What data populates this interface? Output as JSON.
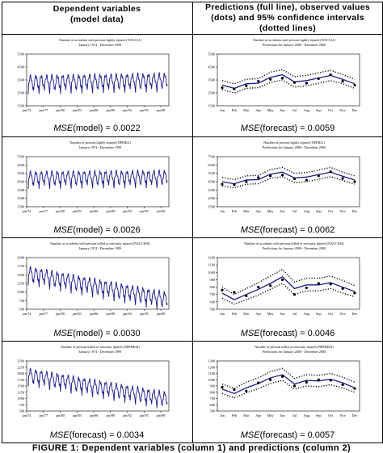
{
  "headers": {
    "left": [
      "Dependent variables",
      "(model data)"
    ],
    "right": [
      "Predictions (full line), observed values",
      "(dots) and 95% confidence intervals",
      "(dotted lines)"
    ]
  },
  "caption": "FIGURE 1: Dependent variables (column 1) and predictions (column 2)",
  "colors": {
    "series": "#1a1a8c",
    "frame": "#000000"
  },
  "chart_data": [
    {
      "type": "line",
      "title": "Number of accidents with persons lightly injured (NACCLI)",
      "subtitle": "January 1974 - December 1999",
      "x_ticks": [
        "jan/74",
        "jan/77",
        "jan/80",
        "jan/83",
        "jan/86",
        "jan/89",
        "jan/92",
        "jan/95",
        "jan/98"
      ],
      "y_ticks": [
        1500,
        2500,
        3500,
        4500,
        5500
      ],
      "ylim": [
        1500,
        5500
      ],
      "series_level_start": 3350,
      "series_level_end": 3500,
      "series_amplitude": 450,
      "mse_label": "MSE",
      "mse_text": "(model) = 0.0022"
    },
    {
      "type": "line",
      "title": "Number of accidents with persons lightly injured (NACCLI)",
      "subtitle": "Predictions for January 2000 - December 2000",
      "categories": [
        "Jan",
        "Feb",
        "Mar",
        "Apr",
        "May",
        "Jun",
        "Jul",
        "Aug",
        "Sep",
        "Oct",
        "Nov",
        "Dec"
      ],
      "y_ticks": [
        1500,
        2500,
        3500,
        4500,
        5500
      ],
      "ylim": [
        1500,
        5500
      ],
      "series": [
        {
          "role": "prediction",
          "values": [
            3100,
            2850,
            3200,
            3250,
            3700,
            3900,
            3350,
            3450,
            3650,
            3850,
            3550,
            3200
          ]
        },
        {
          "role": "upper",
          "values": [
            3450,
            3200,
            3550,
            3600,
            4100,
            4300,
            3750,
            3850,
            4050,
            4250,
            3900,
            3550
          ]
        },
        {
          "role": "lower",
          "values": [
            2750,
            2500,
            2850,
            2900,
            3300,
            3500,
            2950,
            3050,
            3250,
            3450,
            3200,
            2850
          ]
        },
        {
          "role": "observed",
          "values": [
            2900,
            2800,
            3050,
            3400,
            3550,
            3650,
            3300,
            3250,
            3600,
            3900,
            3400,
            3100
          ]
        }
      ],
      "mse_label": "MSE",
      "mse_text": "(forecast) = 0.0059"
    },
    {
      "type": "line",
      "title": "Number of persons lightly injured (NPERLI)",
      "subtitle": "January 1974 - December 1999",
      "x_ticks": [
        "jan/74",
        "jan/77",
        "jan/80",
        "jan/83",
        "jan/86",
        "jan/89",
        "jan/92",
        "jan/95",
        "jan/98"
      ],
      "y_ticks": [
        1500,
        2500,
        3500,
        4500,
        5500,
        6500,
        7500
      ],
      "ylim": [
        1500,
        7500
      ],
      "series_level_start": 5000,
      "series_level_end": 5100,
      "series_amplitude": 650,
      "mse_label": "MSE",
      "mse_text": "(model) = 0.0026"
    },
    {
      "type": "line",
      "title": "Number of persons lightly injured (NPERLI)",
      "subtitle": "Predictions for January 2000 - December 2000",
      "categories": [
        "Jan",
        "Feb",
        "Mar",
        "Apr",
        "May",
        "Jun",
        "Jul",
        "Aug",
        "Sep",
        "Oct",
        "Nov",
        "Dec"
      ],
      "y_ticks": [
        1500,
        2500,
        3500,
        4500,
        5500,
        6500,
        7500
      ],
      "ylim": [
        1500,
        7500
      ],
      "series": [
        {
          "role": "prediction",
          "values": [
            4500,
            4250,
            4700,
            4750,
            5400,
            5650,
            4950,
            5050,
            5350,
            5650,
            5150,
            4700
          ]
        },
        {
          "role": "upper",
          "values": [
            5000,
            4750,
            5200,
            5250,
            5950,
            6200,
            5500,
            5600,
            5900,
            6200,
            5650,
            5200
          ]
        },
        {
          "role": "lower",
          "values": [
            4000,
            3750,
            4200,
            4250,
            4900,
            5100,
            4400,
            4500,
            4800,
            5100,
            4650,
            4200
          ]
        },
        {
          "role": "observed",
          "values": [
            4200,
            4150,
            4500,
            5000,
            5200,
            5300,
            4850,
            4700,
            5200,
            5700,
            4900,
            4500
          ]
        }
      ],
      "mse_label": "MSE",
      "mse_text": "(forecast) = 0.0062"
    },
    {
      "type": "line",
      "title": "Number of accidents with persons killed or seriously injured (NACCKSI)",
      "subtitle": "January 1974 - December 1999",
      "x_ticks": [
        "jan/74",
        "jan/77",
        "jan/80",
        "jan/83",
        "jan/86",
        "jan/89",
        "jan/92",
        "jan/95",
        "jan/98"
      ],
      "y_ticks": [
        500,
        750,
        1000,
        1250,
        1500,
        1750,
        2000
      ],
      "ylim": [
        500,
        2000
      ],
      "series_level_start": 1550,
      "series_level_end": 800,
      "series_amplitude": 170,
      "mse_label": "MSE",
      "mse_text": "(model) = 0.0030"
    },
    {
      "type": "line",
      "title": "Number of accidents with persons killed or seriously injured (NACCKSI)",
      "subtitle": "Predictions for January 2000 - December 2000",
      "categories": [
        "Jan",
        "Feb",
        "Mar",
        "Apr",
        "May",
        "Jun",
        "Jul",
        "Aug",
        "Sep",
        "Oct",
        "Nov",
        "Dec"
      ],
      "y_ticks": [
        500,
        600,
        700,
        800,
        900,
        1000,
        1100,
        1200
      ],
      "ylim": [
        500,
        1200
      ],
      "series": [
        {
          "role": "prediction",
          "values": [
            720,
            630,
            700,
            770,
            850,
            940,
            780,
            830,
            830,
            860,
            800,
            740
          ]
        },
        {
          "role": "upper",
          "values": [
            800,
            700,
            780,
            860,
            950,
            1040,
            870,
            920,
            920,
            950,
            890,
            820
          ]
        },
        {
          "role": "lower",
          "values": [
            650,
            570,
            630,
            690,
            770,
            850,
            700,
            750,
            750,
            780,
            720,
            670
          ]
        },
        {
          "role": "observed",
          "values": [
            760,
            730,
            680,
            800,
            820,
            900,
            700,
            790,
            850,
            840,
            780,
            720
          ]
        }
      ],
      "mse_label": "MSE",
      "mse_text": "(forecast) = 0.0046"
    },
    {
      "type": "line",
      "title": "Number of persons killed or seriously injured (NPERKSI)",
      "subtitle": "January 1974 - December 1999",
      "x_ticks": [
        "jan/74",
        "jan/77",
        "jan/80",
        "jan/83",
        "jan/86",
        "jan/89",
        "jan/92",
        "jan/95",
        "jan/98"
      ],
      "y_ticks": [
        500,
        750,
        1000,
        1250,
        1500,
        1750,
        2000,
        2250,
        2500
      ],
      "ylim": [
        500,
        2500
      ],
      "series_level_start": 1950,
      "series_level_end": 1000,
      "series_amplitude": 220,
      "mse_label": "MSE",
      "mse_text": "(forecast) = 0.0034"
    },
    {
      "type": "line",
      "title": "Number of persons killed or seriously injured (NPERKSI)",
      "subtitle": "Predictions for January 2000 - December 2000",
      "categories": [
        "Jan",
        "Feb",
        "Mar",
        "Apr",
        "May",
        "Jun",
        "Jul",
        "Aug",
        "Sep",
        "Oct",
        "Nov",
        "Dec"
      ],
      "y_ticks": [
        500,
        600,
        700,
        800,
        900,
        1000,
        1100,
        1200,
        1300
      ],
      "ylim": [
        500,
        1300
      ],
      "series": [
        {
          "role": "prediction",
          "values": [
            850,
            780,
            870,
            940,
            1030,
            1080,
            930,
            990,
            980,
            1010,
            950,
            870
          ]
        },
        {
          "role": "upper",
          "values": [
            930,
            860,
            960,
            1030,
            1130,
            1180,
            1020,
            1080,
            1070,
            1100,
            1040,
            960
          ]
        },
        {
          "role": "lower",
          "values": [
            780,
            710,
            790,
            860,
            940,
            990,
            850,
            900,
            890,
            920,
            870,
            800
          ]
        },
        {
          "role": "observed",
          "values": [
            880,
            840,
            820,
            950,
            1000,
            1050,
            900,
            960,
            1000,
            990,
            920,
            860
          ]
        }
      ],
      "mse_label": "MSE",
      "mse_text": "(forecast) = 0.0057"
    }
  ]
}
